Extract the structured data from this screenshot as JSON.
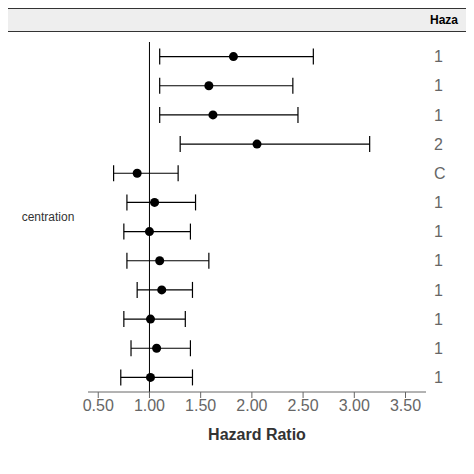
{
  "chart_data": {
    "type": "forest",
    "xlabel": "Hazard Ratio",
    "annotations": [
      "Haza",
      "centration"
    ],
    "categories": [
      "1",
      "1",
      "1",
      "2",
      "C",
      "1",
      "1",
      "1",
      "1",
      "1",
      "1",
      "1"
    ],
    "values": [
      1.82,
      1.58,
      1.62,
      2.05,
      0.88,
      1.05,
      1.0,
      1.1,
      1.12,
      1.01,
      1.07,
      1.01
    ],
    "lo": [
      1.1,
      1.1,
      1.1,
      1.3,
      0.65,
      0.78,
      0.75,
      0.78,
      0.88,
      0.75,
      0.82,
      0.72
    ],
    "hi": [
      2.6,
      2.4,
      2.45,
      3.15,
      1.28,
      1.45,
      1.4,
      1.58,
      1.42,
      1.35,
      1.4,
      1.42
    ],
    "color": "#000000",
    "vline": 1.0,
    "xlim": [
      0.4,
      3.7
    ],
    "xticks": [
      {
        "value": 0.5,
        "label": "0.50"
      },
      {
        "value": 1.0,
        "label": "1.00"
      },
      {
        "value": 1.5,
        "label": "1.50"
      },
      {
        "value": 2.0,
        "label": "2.00"
      },
      {
        "value": 2.5,
        "label": "2.50"
      },
      {
        "value": 3.0,
        "label": "3.00"
      },
      {
        "value": 3.5,
        "label": "3.50"
      }
    ],
    "grid": false
  }
}
